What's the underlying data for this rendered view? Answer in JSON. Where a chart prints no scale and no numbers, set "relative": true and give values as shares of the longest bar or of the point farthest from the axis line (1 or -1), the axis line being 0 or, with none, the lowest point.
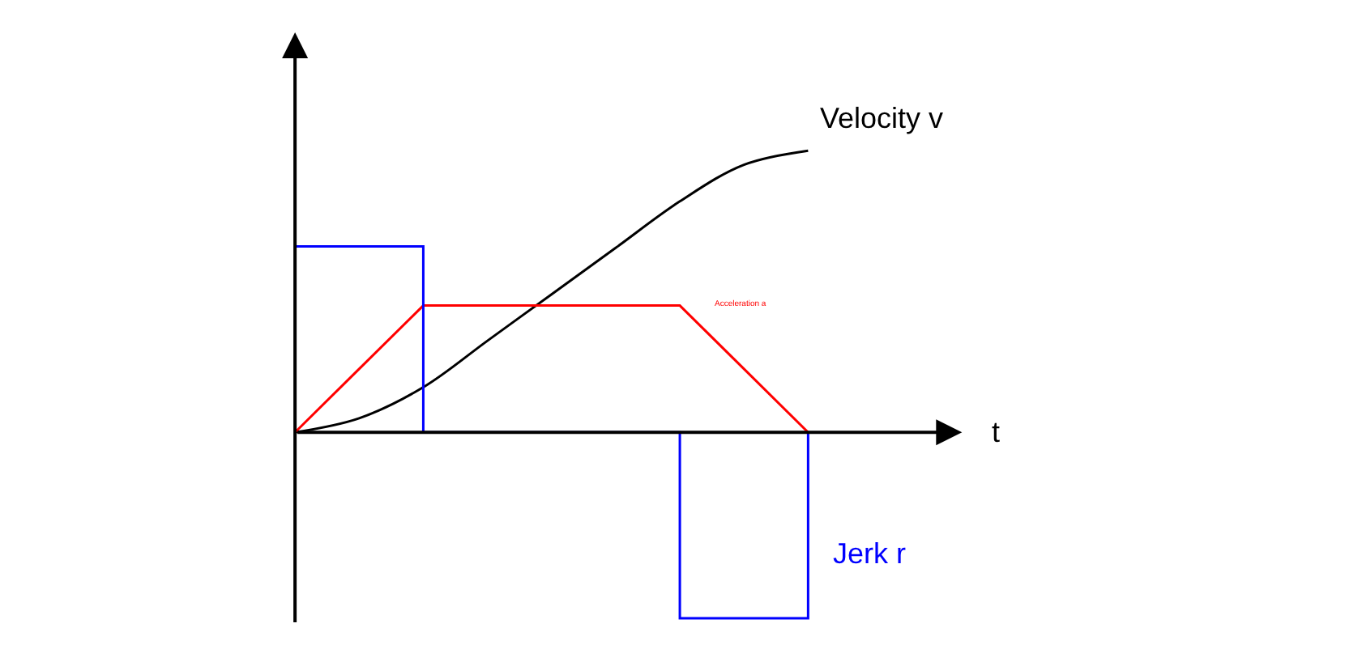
{
  "chart_data": {
    "type": "line",
    "relative": true,
    "annotations": [
      "t"
    ],
    "categories": [
      null,
      null,
      null,
      null,
      null,
      null,
      null,
      null,
      null
    ],
    "legend": false,
    "grid": false,
    "tick_labels": false,
    "marker": "none",
    "series": [
      {
        "name": "Velocity v",
        "color": "#000000",
        "values": [
          0,
          0.05,
          0.16,
          0.325,
          0.49,
          0.655,
          0.82,
          0.95,
          1.0
        ]
      },
      {
        "name": "Acceleration a",
        "color": "#ff0000",
        "values": [
          0,
          0.225,
          0.45,
          0.45,
          0.45,
          0.45,
          0.45,
          0.225,
          0
        ]
      },
      {
        "name": "Jerk r",
        "type": "step",
        "color": "#0000ff",
        "values": [
          0.66,
          0.66,
          0,
          0,
          0,
          0,
          -0.66,
          -0.66,
          0
        ]
      }
    ]
  }
}
